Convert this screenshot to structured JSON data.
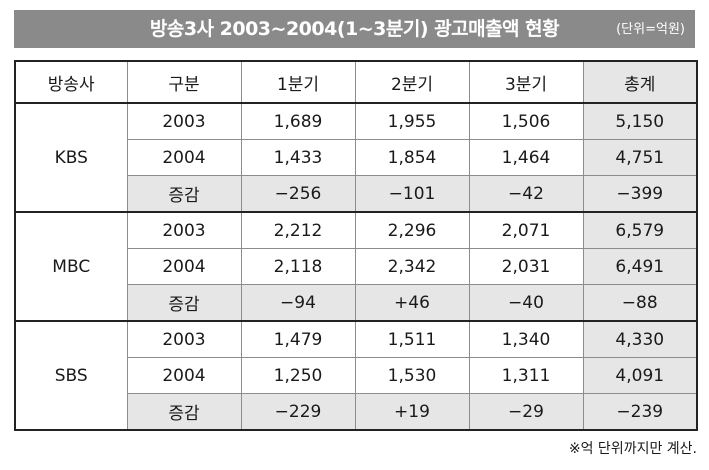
{
  "header": {
    "title": "방송3사 2003~2004(1~3분기) 광고매출액 현황",
    "unit": "(단위=억원)"
  },
  "table": {
    "columns": [
      "방송사",
      "구분",
      "1분기",
      "2분기",
      "3분기",
      "총계"
    ],
    "groups": [
      {
        "broadcaster": "KBS",
        "rows": [
          {
            "label": "2003",
            "q1": "1,689",
            "q2": "1,955",
            "q3": "1,506",
            "total": "5,150"
          },
          {
            "label": "2004",
            "q1": "1,433",
            "q2": "1,854",
            "q3": "1,464",
            "total": "4,751"
          },
          {
            "label": "증감",
            "q1": "−256",
            "q2": "−101",
            "q3": "−42",
            "total": "−399"
          }
        ]
      },
      {
        "broadcaster": "MBC",
        "rows": [
          {
            "label": "2003",
            "q1": "2,212",
            "q2": "2,296",
            "q3": "2,071",
            "total": "6,579"
          },
          {
            "label": "2004",
            "q1": "2,118",
            "q2": "2,342",
            "q3": "2,031",
            "total": "6,491"
          },
          {
            "label": "증감",
            "q1": "−94",
            "q2": "+46",
            "q3": "−40",
            "total": "−88"
          }
        ]
      },
      {
        "broadcaster": "SBS",
        "rows": [
          {
            "label": "2003",
            "q1": "1,479",
            "q2": "1,511",
            "q3": "1,340",
            "total": "4,330"
          },
          {
            "label": "2004",
            "q1": "1,250",
            "q2": "1,530",
            "q3": "1,311",
            "total": "4,091"
          },
          {
            "label": "증감",
            "q1": "−229",
            "q2": "+19",
            "q3": "−29",
            "total": "−239"
          }
        ]
      }
    ]
  },
  "footnote": "※억 단위까지만 계산.",
  "colors": {
    "title_bg": "#8a8a8a",
    "shade": "#e6e6e6",
    "border": "#8c8c8c"
  }
}
